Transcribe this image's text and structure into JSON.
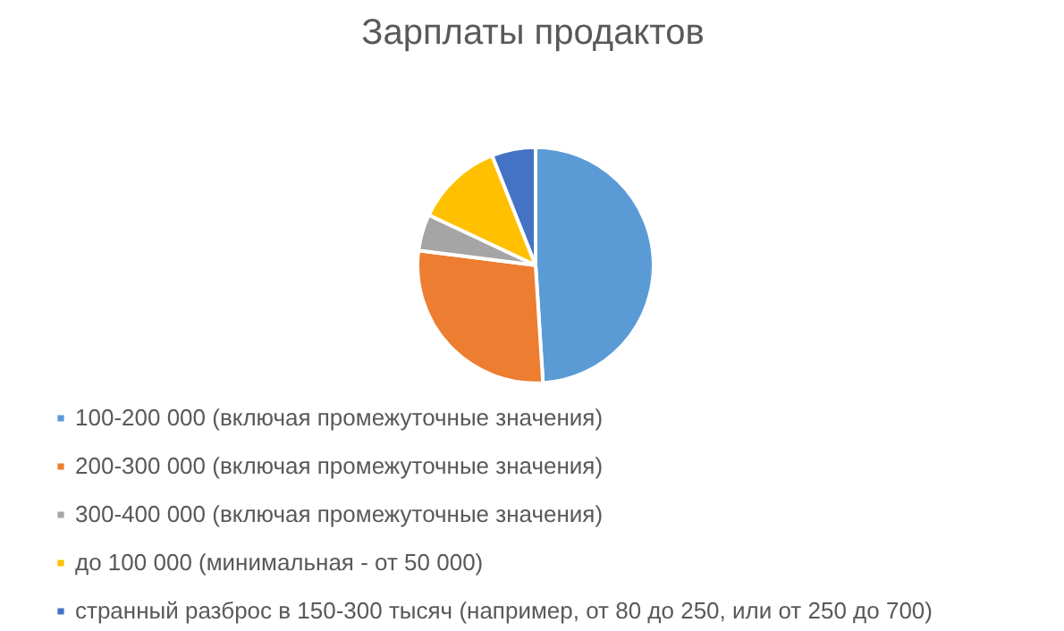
{
  "chart_data": {
    "type": "pie",
    "title": "Зарплаты продактов",
    "categories": [
      "100-200 000 (включая промежуточные значения)",
      "200-300 000 (включая промежуточные значения)",
      "300-400 000 (включая промежуточные значения)",
      "до 100 000 (минимальная - от 50 000)",
      "странный разброс в 150-300 тысяч (например, от 80 до 250, или от 250 до 700)"
    ],
    "values": [
      49,
      28,
      5,
      12,
      6
    ],
    "colors": [
      "#5b9bd5",
      "#ed7d31",
      "#a5a5a5",
      "#ffc000",
      "#4472c4"
    ],
    "legend": "bottom"
  }
}
